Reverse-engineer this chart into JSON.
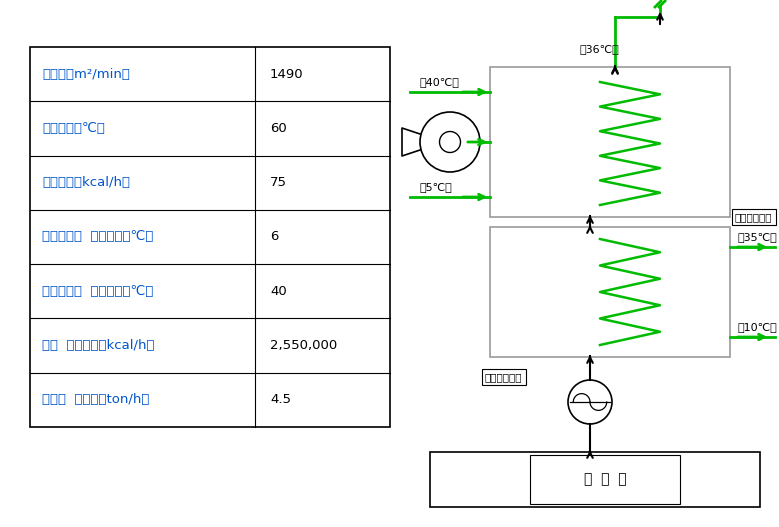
{
  "table_rows": [
    [
      "排气量（m²/min）",
      "1490"
    ],
    [
      "排气温度（℃）",
      "60"
    ],
    [
      "清水流量（kcal/h）",
      "75"
    ],
    [
      "热交换机器  入口温度（℃）",
      "6"
    ],
    [
      "热交换机器  出口温度（℃）",
      "40"
    ],
    [
      "清水  加热温度（kcal/h）",
      "2,550,000"
    ],
    [
      "凝缩水  回收量（ton/h）",
      "4.5"
    ]
  ],
  "green": "#00BB00",
  "black": "#000000",
  "blue": "#0055CC",
  "bg": "#FFFFFF",
  "label_36": "（36℃）",
  "label_40": "（40℃）",
  "label_5": "（5℃）",
  "label_35": "（35℃）",
  "label_10": "（10℃）",
  "label_hakuen": "白烟消除设备",
  "label_existing": "现有热交换机",
  "label_boiler": "封  闭  罐"
}
